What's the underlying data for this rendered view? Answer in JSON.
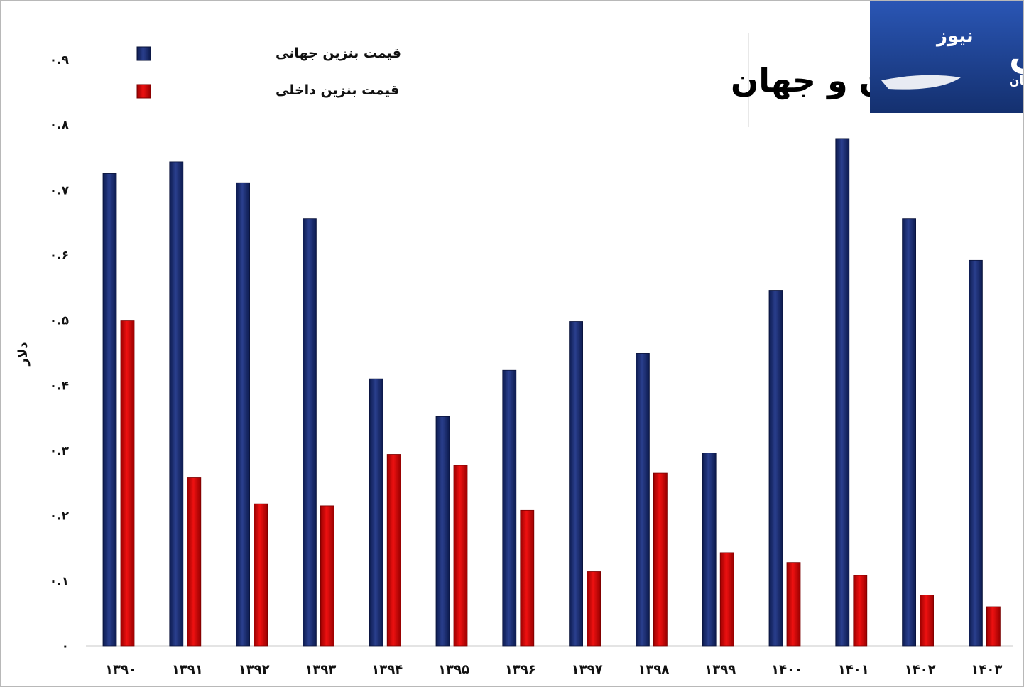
{
  "chart_data": {
    "type": "bar",
    "title": "قیمت بنزین در ایران و جهان",
    "ylabel": "دلار",
    "ylim": [
      0,
      0.9
    ],
    "yticks": [
      {
        "value": 0,
        "label": "0"
      },
      {
        "value": 0.1,
        "label": "0.1"
      },
      {
        "value": 0.2,
        "label": "0.2"
      },
      {
        "value": 0.3,
        "label": "0.3"
      },
      {
        "value": 0.4,
        "label": "0.4"
      },
      {
        "value": 0.5,
        "label": "0.5"
      },
      {
        "value": 0.6,
        "label": "0.6"
      },
      {
        "value": 0.7,
        "label": "0.7"
      },
      {
        "value": 0.8,
        "label": "0.8"
      },
      {
        "value": 0.9,
        "label": "0.9"
      }
    ],
    "grid": false,
    "legend_position": "top-left",
    "categories": [
      "1390",
      "1391",
      "1392",
      "1393",
      "1394",
      "1395",
      "1396",
      "1397",
      "1398",
      "1399",
      "1400",
      "1401",
      "1402",
      "1403"
    ],
    "series": [
      {
        "name": "قیمت بنزین جهانی",
        "color": "#1a2a6c",
        "values": [
          0.725,
          0.743,
          0.711,
          0.656,
          0.41,
          0.352,
          0.423,
          0.498,
          0.449,
          0.296,
          0.546,
          0.779,
          0.656,
          0.592
        ]
      },
      {
        "name": "قیمت بنزین داخلی",
        "color": "#cc0000",
        "values": [
          0.499,
          0.258,
          0.218,
          0.215,
          0.294,
          0.277,
          0.208,
          0.114,
          0.265,
          0.143,
          0.128,
          0.108,
          0.078,
          0.06
        ]
      }
    ]
  },
  "logo": {
    "main": "صنعت",
    "sub": "نیوز",
    "tiny": "جهان",
    "bg_color": "#1c3f8f"
  }
}
